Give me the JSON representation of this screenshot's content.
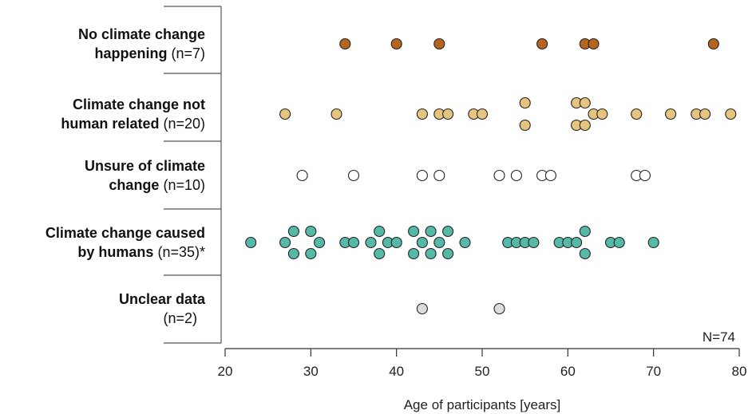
{
  "chart_data": {
    "type": "scatter",
    "xlabel": "Age of participants [years]",
    "xlim": [
      20,
      80
    ],
    "xticks": [
      20,
      30,
      40,
      50,
      60,
      70,
      80
    ],
    "total_label": "N=74",
    "grid": false,
    "groups": [
      {
        "name_lines": [
          "No climate change",
          "happening"
        ],
        "count_label": "(n=7)",
        "color": "#b5651d",
        "points": [
          {
            "x": 34,
            "row": 0
          },
          {
            "x": 40,
            "row": 0
          },
          {
            "x": 45,
            "row": 0
          },
          {
            "x": 57,
            "row": 0
          },
          {
            "x": 62,
            "row": 0
          },
          {
            "x": 63,
            "row": 0
          },
          {
            "x": 77,
            "row": 0
          }
        ]
      },
      {
        "name_lines": [
          "Climate change not",
          "human related"
        ],
        "count_label": "(n=20)",
        "color": "#e6c47e",
        "points": [
          {
            "x": 27,
            "row": 0
          },
          {
            "x": 33,
            "row": 0
          },
          {
            "x": 43,
            "row": 0
          },
          {
            "x": 45,
            "row": 0
          },
          {
            "x": 46,
            "row": 0
          },
          {
            "x": 49,
            "row": 0
          },
          {
            "x": 50,
            "row": 0
          },
          {
            "x": 55,
            "row": -1
          },
          {
            "x": 55,
            "row": 1
          },
          {
            "x": 61,
            "row": -1
          },
          {
            "x": 62,
            "row": -1
          },
          {
            "x": 61,
            "row": 1
          },
          {
            "x": 62,
            "row": 1
          },
          {
            "x": 63,
            "row": 0
          },
          {
            "x": 64,
            "row": 0
          },
          {
            "x": 68,
            "row": 0
          },
          {
            "x": 72,
            "row": 0
          },
          {
            "x": 75,
            "row": 0
          },
          {
            "x": 76,
            "row": 0
          },
          {
            "x": 79,
            "row": 0
          }
        ]
      },
      {
        "name_lines": [
          "Unsure of climate",
          "change"
        ],
        "count_label": "(n=10)",
        "color": "#ffffff",
        "points": [
          {
            "x": 29,
            "row": 0
          },
          {
            "x": 35,
            "row": 0
          },
          {
            "x": 43,
            "row": 0
          },
          {
            "x": 45,
            "row": 0
          },
          {
            "x": 52,
            "row": 0
          },
          {
            "x": 54,
            "row": 0
          },
          {
            "x": 57,
            "row": 0
          },
          {
            "x": 58,
            "row": 0
          },
          {
            "x": 68,
            "row": 0
          },
          {
            "x": 69,
            "row": 0
          }
        ]
      },
      {
        "name_lines": [
          "Climate change caused",
          "by humans"
        ],
        "count_label": "(n=35)*",
        "color": "#56b9a8",
        "points": [
          {
            "x": 23,
            "row": 0
          },
          {
            "x": 27,
            "row": 0
          },
          {
            "x": 28,
            "row": -1
          },
          {
            "x": 28,
            "row": 1
          },
          {
            "x": 30,
            "row": -1
          },
          {
            "x": 30,
            "row": 1
          },
          {
            "x": 31,
            "row": 0
          },
          {
            "x": 34,
            "row": 0
          },
          {
            "x": 35,
            "row": 0
          },
          {
            "x": 38,
            "row": -1
          },
          {
            "x": 38,
            "row": 1
          },
          {
            "x": 39,
            "row": 0
          },
          {
            "x": 40,
            "row": 0
          },
          {
            "x": 42,
            "row": -1
          },
          {
            "x": 42,
            "row": 1
          },
          {
            "x": 43,
            "row": 0
          },
          {
            "x": 44,
            "row": -1
          },
          {
            "x": 44,
            "row": 1
          },
          {
            "x": 45,
            "row": 0
          },
          {
            "x": 46,
            "row": -1
          },
          {
            "x": 46,
            "row": 1
          },
          {
            "x": 48,
            "row": 0
          },
          {
            "x": 53,
            "row": 0
          },
          {
            "x": 54,
            "row": 0
          },
          {
            "x": 55,
            "row": 0
          },
          {
            "x": 56,
            "row": 0
          },
          {
            "x": 59,
            "row": 0
          },
          {
            "x": 60,
            "row": 0
          },
          {
            "x": 61,
            "row": 0
          },
          {
            "x": 62,
            "row": -1
          },
          {
            "x": 62,
            "row": 1
          },
          {
            "x": 65,
            "row": 0
          },
          {
            "x": 66,
            "row": 0
          },
          {
            "x": 70,
            "row": 0
          },
          {
            "x": 37,
            "row": 0
          }
        ]
      },
      {
        "name_lines": [
          "Unclear data",
          ""
        ],
        "count_label": "(n=2)",
        "color": "#dddddd",
        "points": [
          {
            "x": 43,
            "row": 0
          },
          {
            "x": 52,
            "row": 0
          }
        ]
      }
    ]
  }
}
